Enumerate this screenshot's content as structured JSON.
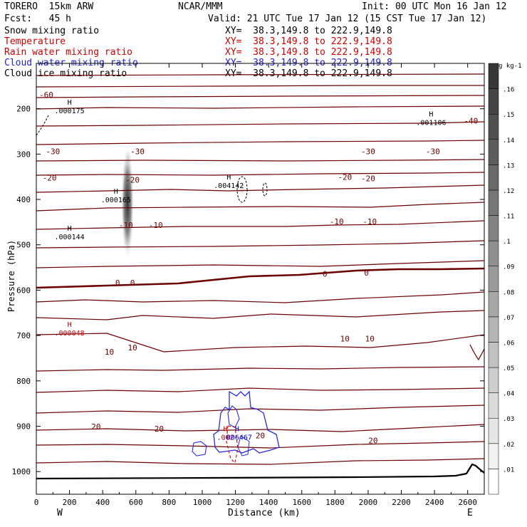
{
  "header": {
    "model": "TORERO  15km ARW",
    "org": "NCAR/MMM",
    "init": "Init: 00 UTC Mon 16 Jan 12",
    "fcst": "Fcst:   45 h",
    "valid": "Valid: 21 UTC Tue 17 Jan 12 (15 CST Tue 17 Jan 12)"
  },
  "fields": [
    {
      "label": "Snow mixing ratio",
      "xy": "XY=  38.3,149.8 to 222.9,149.8",
      "color": "#000000"
    },
    {
      "label": "Temperature",
      "xy": "XY=  38.3,149.8 to 222.9,149.8",
      "color": "#cc0000"
    },
    {
      "label": "Rain water mixing ratio",
      "xy": "XY=  38.3,149.8 to 222.9,149.8",
      "color": "#cc0000"
    },
    {
      "label": "Cloud water mixing ratio",
      "xy": "XY=  38.3,149.8 to 222.9,149.8",
      "color": "#0000cc"
    },
    {
      "label": "Cloud ice mixing ratio",
      "xy": "XY=  38.3,149.8 to 222.9,149.8",
      "color": "#000000"
    }
  ],
  "colors": {
    "temperature": "#6b0000",
    "freezing_line": "#6b0000",
    "cloud_water": "#2a2ae0",
    "rain": "#cc0000",
    "ground": "#000000"
  },
  "chart_data": {
    "type": "contour",
    "xlabel": "Distance (km)",
    "ylabel": "Pressure (hPa)",
    "xlim": [
      0,
      2700
    ],
    "ylim": [
      1050,
      100
    ],
    "x_ticks": [
      0,
      200,
      400,
      600,
      800,
      1000,
      1200,
      1400,
      1600,
      1800,
      2000,
      2200,
      2400,
      2600
    ],
    "y_ticks": [
      200,
      300,
      400,
      500,
      600,
      700,
      800,
      900,
      1000
    ],
    "y_tick_labels": [
      "200",
      "300",
      "400",
      "500",
      "600",
      "700",
      "800",
      "900",
      "1000"
    ],
    "endpoints": {
      "left": "W",
      "right": "E"
    },
    "temperature_labels": [
      {
        "x": 60,
        "p": 175,
        "text": "-60"
      },
      {
        "x": 2620,
        "p": 233,
        "text": "-40"
      },
      {
        "x": 100,
        "p": 300,
        "text": "-30"
      },
      {
        "x": 610,
        "p": 300,
        "text": "-30"
      },
      {
        "x": 2000,
        "p": 300,
        "text": "-30"
      },
      {
        "x": 2390,
        "p": 300,
        "text": "-30"
      },
      {
        "x": 80,
        "p": 358,
        "text": "-20"
      },
      {
        "x": 580,
        "p": 363,
        "text": "-20"
      },
      {
        "x": 1860,
        "p": 357,
        "text": "-20"
      },
      {
        "x": 2000,
        "p": 360,
        "text": "-20"
      },
      {
        "x": 1810,
        "p": 455,
        "text": "-10"
      },
      {
        "x": 2010,
        "p": 455,
        "text": "-10"
      },
      {
        "x": 540,
        "p": 463,
        "text": "-10"
      },
      {
        "x": 720,
        "p": 463,
        "text": "-10"
      },
      {
        "x": 490,
        "p": 590,
        "text": "0"
      },
      {
        "x": 580,
        "p": 590,
        "text": "0"
      },
      {
        "x": 1740,
        "p": 570,
        "text": "0"
      },
      {
        "x": 1990,
        "p": 568,
        "text": "0"
      },
      {
        "x": 1860,
        "p": 713,
        "text": "10"
      },
      {
        "x": 2010,
        "p": 713,
        "text": "10"
      },
      {
        "x": 440,
        "p": 742,
        "text": "10"
      },
      {
        "x": 580,
        "p": 733,
        "text": "10"
      },
      {
        "x": 360,
        "p": 907,
        "text": "20"
      },
      {
        "x": 740,
        "p": 912,
        "text": "20"
      },
      {
        "x": 1350,
        "p": 927,
        "text": "20"
      },
      {
        "x": 2030,
        "p": 938,
        "text": "20"
      }
    ],
    "maxima": [
      {
        "x": 200,
        "p": 207,
        "h": "H",
        "value": ".000175",
        "color": "#000000"
      },
      {
        "x": 2380,
        "p": 233,
        "h": "H",
        "value": ".001106",
        "color": "#000000"
      },
      {
        "x": 1160,
        "p": 372,
        "h": "H",
        "value": ".004142",
        "color": "#000000"
      },
      {
        "x": 480,
        "p": 403,
        "h": "H",
        "value": ".000165",
        "color": "#000000"
      },
      {
        "x": 200,
        "p": 485,
        "h": "H",
        "value": ".000144",
        "color": "#000000"
      },
      {
        "x": 200,
        "p": 697,
        "h": "H",
        "value": ".000048",
        "color": "#cc0000"
      },
      {
        "x": 1140,
        "p": 927,
        "h": "H",
        "value": ".002",
        "color": "#cc0000"
      },
      {
        "x": 1210,
        "p": 927,
        "h": "H",
        "value": ".006467",
        "color": "#0000cc"
      }
    ],
    "colorbar": {
      "unit": "g kg-1",
      "levels": [
        ".01",
        ".02",
        ".03",
        ".04",
        ".05",
        ".06",
        ".07",
        ".08",
        ".09",
        ".1",
        ".11",
        ".12",
        ".13",
        ".14",
        ".15",
        ".16"
      ]
    }
  }
}
